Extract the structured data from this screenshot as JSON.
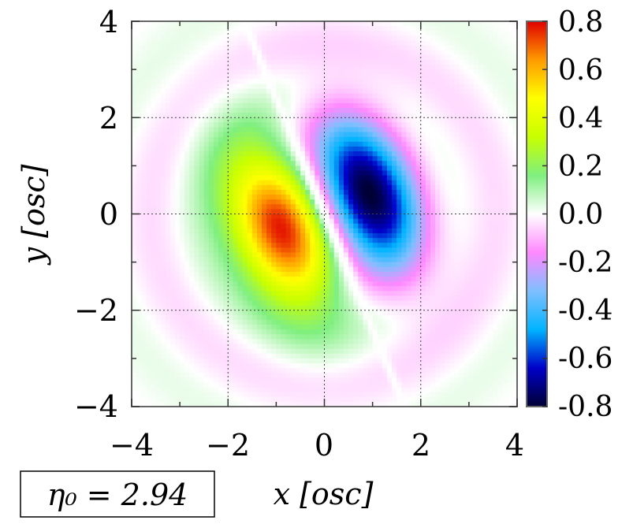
{
  "chart_data": {
    "type": "heatmap",
    "title": "",
    "xlabel": "x [osc]",
    "ylabel": "y [osc]",
    "xlim": [
      -4,
      4
    ],
    "ylim": [
      -4,
      4
    ],
    "x_ticks": [
      "−4",
      "−2",
      "0",
      "2",
      "4"
    ],
    "y_ticks": [
      "4",
      "2",
      "0",
      "−2",
      "−4"
    ],
    "x_tick_values": [
      -4,
      -2,
      0,
      2,
      4
    ],
    "y_tick_values": [
      4,
      2,
      0,
      -2,
      -4
    ],
    "grid": true,
    "colorbar": {
      "range": [
        -0.8,
        0.8
      ],
      "ticks": [
        "0.8",
        "0.6",
        "0.4",
        "0.2",
        "0.0",
        "-0.2",
        "-0.4",
        "-0.6",
        "-0.8"
      ],
      "tick_values": [
        0.8,
        0.6,
        0.4,
        0.2,
        0.0,
        -0.2,
        -0.4,
        -0.6,
        -0.8
      ],
      "colors": [
        "#000033",
        "#0000c8",
        "#00b4ff",
        "#7fbfff",
        "#ff88ff",
        "#ffffff",
        "#7fef7f",
        "#c8ff00",
        "#ffff00",
        "#ff9a00",
        "#e00000"
      ]
    },
    "features": [
      {
        "sign": "positive",
        "peak_value": 0.8,
        "center": [
          -0.9,
          -0.3
        ],
        "half_length": 1.65,
        "half_width": 0.95
      },
      {
        "sign": "negative",
        "peak_value": -0.8,
        "center": [
          0.9,
          0.4
        ],
        "half_length": 1.65,
        "half_width": 0.95
      }
    ],
    "nodal_line_slope": -2.4,
    "annotation": "η₀ = 2.94"
  }
}
